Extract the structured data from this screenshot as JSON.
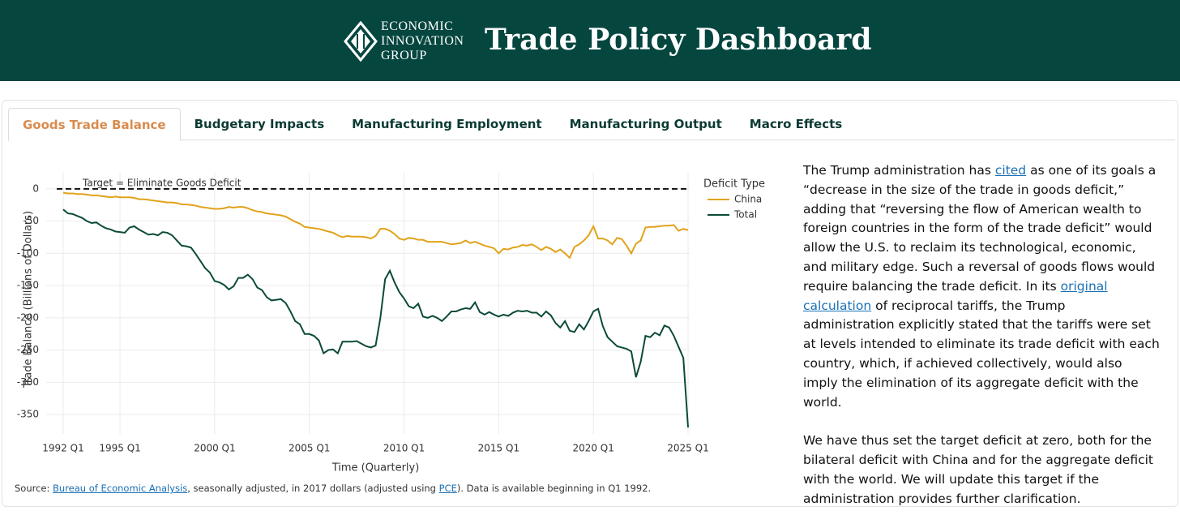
{
  "header": {
    "logo_lines": [
      "ECONOMIC",
      "INNOVATION",
      "GROUP"
    ],
    "title": "Trade Policy Dashboard"
  },
  "tabs": {
    "items": [
      "Goods Trade Balance",
      "Budgetary Impacts",
      "Manufacturing Employment",
      "Manufacturing Output",
      "Macro Effects"
    ],
    "active": 0
  },
  "chart_data": {
    "type": "line",
    "annotation": "Target = Eliminate Goods Deficit",
    "target": 0,
    "x_label": "Time (Quarterly)",
    "y_label": "Trade Balance (Billions of Dollars)",
    "legend_title": "Deficit Type",
    "legend": "top-right",
    "grid": true,
    "categories": [
      "1992 Q1",
      null,
      null,
      null,
      null,
      null,
      null,
      null,
      null,
      null,
      null,
      null,
      "1995 Q1",
      null,
      null,
      null,
      null,
      null,
      null,
      null,
      null,
      null,
      null,
      null,
      null,
      null,
      null,
      null,
      null,
      null,
      null,
      null,
      "2000 Q1",
      null,
      null,
      null,
      null,
      null,
      null,
      null,
      null,
      null,
      null,
      null,
      null,
      null,
      null,
      null,
      null,
      null,
      null,
      null,
      "2005 Q1",
      null,
      null,
      null,
      null,
      null,
      null,
      null,
      null,
      null,
      null,
      null,
      null,
      null,
      null,
      null,
      null,
      null,
      null,
      null,
      "2010 Q1",
      null,
      null,
      null,
      null,
      null,
      null,
      null,
      null,
      null,
      null,
      null,
      null,
      null,
      null,
      null,
      null,
      null,
      null,
      null,
      "2015 Q1",
      null,
      null,
      null,
      null,
      null,
      null,
      null,
      null,
      null,
      null,
      null,
      null,
      null,
      null,
      null,
      null,
      null,
      null,
      null,
      "2020 Q1",
      null,
      null,
      null,
      null,
      null,
      null,
      null,
      null,
      null,
      null,
      null,
      null,
      null,
      null,
      null,
      null,
      null,
      null,
      null,
      "2025 Q1"
    ],
    "ylim": [
      -380,
      25
    ],
    "yticks": [
      0,
      -50,
      -100,
      -150,
      -200,
      -250,
      -300,
      -350
    ],
    "series": [
      {
        "name": "China",
        "color": "#e0a31a",
        "values": [
          -6,
          -7,
          -7,
          -8,
          -8,
          -9,
          -10,
          -10,
          -11,
          -12,
          -13,
          -12,
          -13,
          -13,
          -13,
          -14,
          -16,
          -16,
          -17,
          -18,
          -19,
          -20,
          -21,
          -21,
          -22,
          -24,
          -24,
          -25,
          -26,
          -28,
          -29,
          -30,
          -31,
          -31,
          -30,
          -28,
          -29,
          -28,
          -28,
          -30,
          -33,
          -35,
          -36,
          -38,
          -39,
          -40,
          -41,
          -43,
          -47,
          -51,
          -54,
          -59,
          -60,
          -61,
          -62,
          -64,
          -66,
          -68,
          -72,
          -75,
          -73,
          -74,
          -74,
          -74,
          -75,
          -77,
          -73,
          -62,
          -62,
          -65,
          -70,
          -77,
          -79,
          -76,
          -77,
          -79,
          -79,
          -82,
          -82,
          -82,
          -82,
          -84,
          -86,
          -85,
          -84,
          -80,
          -84,
          -82,
          -85,
          -88,
          -90,
          -92,
          -100,
          -93,
          -94,
          -91,
          -90,
          -87,
          -88,
          -86,
          -90,
          -95,
          -90,
          -93,
          -98,
          -94,
          -100,
          -107,
          -90,
          -86,
          -80,
          -72,
          -58,
          -77,
          -77,
          -80,
          -86,
          -76,
          -78,
          -88,
          -100,
          -85,
          -80,
          -60,
          -59,
          -59,
          -58,
          -57,
          -57,
          -56,
          -65,
          -62,
          -64
        ]
      },
      {
        "name": "Total",
        "color": "#0b4a3a",
        "values": [
          -32,
          -38,
          -39,
          -42,
          -45,
          -50,
          -53,
          -52,
          -57,
          -61,
          -63,
          -66,
          -67,
          -68,
          -60,
          -58,
          -63,
          -67,
          -71,
          -70,
          -72,
          -67,
          -68,
          -72,
          -80,
          -88,
          -89,
          -91,
          -101,
          -112,
          -123,
          -130,
          -143,
          -145,
          -149,
          -156,
          -151,
          -138,
          -138,
          -133,
          -140,
          -153,
          -157,
          -168,
          -173,
          -172,
          -171,
          -177,
          -190,
          -205,
          -210,
          -225,
          -225,
          -228,
          -235,
          -255,
          -250,
          -249,
          -255,
          -237,
          -237,
          -237,
          -236,
          -240,
          -244,
          -246,
          -243,
          -200,
          -140,
          -127,
          -145,
          -160,
          -170,
          -182,
          -185,
          -178,
          -198,
          -200,
          -197,
          -200,
          -205,
          -198,
          -190,
          -190,
          -187,
          -185,
          -186,
          -176,
          -191,
          -195,
          -191,
          -195,
          -198,
          -195,
          -197,
          -192,
          -189,
          -190,
          -189,
          -192,
          -192,
          -198,
          -190,
          -196,
          -208,
          -215,
          -205,
          -220,
          -222,
          -210,
          -218,
          -205,
          -190,
          -186,
          -213,
          -230,
          -237,
          -244,
          -246,
          -248,
          -252,
          -292,
          -268,
          -228,
          -230,
          -223,
          -227,
          -212,
          -215,
          -228,
          -245,
          -262,
          -370
        ]
      }
    ]
  },
  "source": [
    "Source: ",
    {
      "link": "Bureau of Economic Analysis"
    },
    ", seasonally adjusted, in 2017 dollars (adjusted using ",
    {
      "link": "PCE"
    },
    "). Data is available beginning in Q1 1992."
  ],
  "paragraphs": [
    [
      "The Trump administration has ",
      {
        "link": "cited"
      },
      " as one of its goals a “decrease in the size of the trade in goods deficit,” adding that “reversing the flow of American wealth to foreign countries in the form of the trade deficit” would allow the U.S. to reclaim its technological, economic, and military edge. Such a reversal of goods flows would require balancing the trade deficit. In its ",
      {
        "link": "original calculation"
      },
      " of reciprocal tariffs, the Trump administration explicitly stated that the tariffs were set at levels intended to eliminate its trade deficit with each country, which, if achieved collectively, would also imply the elimination of its aggregate deficit with the world."
    ],
    [
      "We have thus set the target deficit at zero, both for the bilateral deficit with China and for the aggregate deficit with the world. We will update this target if the administration provides further clarification."
    ]
  ]
}
